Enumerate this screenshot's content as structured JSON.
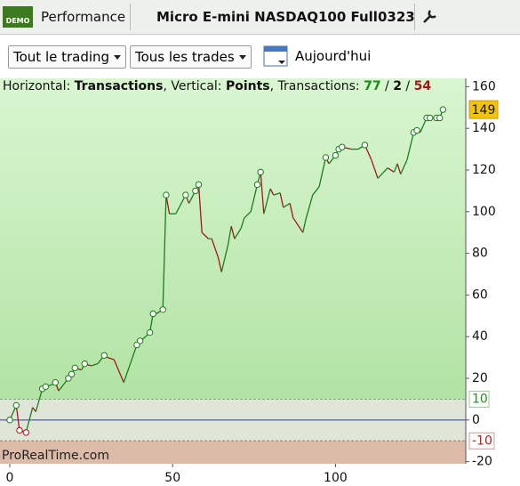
{
  "toolbar": {
    "badge": "DEMO",
    "view": "Performance",
    "instrument": "Micro E-mini NASDAQ100 Full0323"
  },
  "filters": {
    "scope": "Tout le trading",
    "trades": "Tous les trades",
    "period": "Aujourd'hui"
  },
  "chart_data": {
    "type": "line",
    "info": {
      "h_label": "Horizontal: ",
      "h_value": "Transactions",
      "v_label": ", Vertical: ",
      "v_value": "Points",
      "t_label": ", Transactions: ",
      "winners": "77",
      "slash1": " / ",
      "neutral": "2",
      "slash2": " / ",
      "losers": "54"
    },
    "watermark": "ProRealTime.com",
    "x": [
      0,
      2,
      3,
      5,
      7,
      8,
      10,
      11,
      13,
      14,
      15,
      17,
      18,
      19,
      20,
      22,
      23,
      25,
      27,
      29,
      30,
      32,
      35,
      37,
      39,
      40,
      41,
      43,
      44,
      45,
      47,
      48,
      49,
      51,
      54,
      55,
      57,
      58,
      59,
      61,
      62,
      64,
      65,
      67,
      68,
      69,
      71,
      72,
      74,
      76,
      77,
      78,
      80,
      81,
      83,
      84,
      86,
      87,
      90,
      91,
      93,
      95,
      97,
      98,
      100,
      101,
      102,
      105,
      107,
      109,
      111,
      113,
      116,
      118,
      119,
      120,
      122,
      124,
      125,
      126,
      128,
      129,
      131,
      132,
      133
    ],
    "values": [
      0,
      7,
      -5,
      -6,
      6,
      4,
      15,
      16,
      17,
      18,
      14,
      18,
      20,
      22,
      25,
      24,
      27,
      26,
      27,
      31,
      30,
      29,
      18,
      27,
      36,
      38,
      39,
      42,
      51,
      51,
      53,
      108,
      99,
      99,
      108,
      104,
      110,
      113,
      90,
      87,
      87,
      78,
      71,
      84,
      93,
      87,
      92,
      97,
      100,
      113,
      119,
      99,
      111,
      108,
      109,
      102,
      104,
      97,
      90,
      97,
      108,
      112,
      126,
      123,
      127,
      130,
      131,
      130,
      130,
      132,
      125,
      116,
      121,
      119,
      123,
      118,
      125,
      138,
      139,
      138,
      145,
      145,
      145,
      145,
      149
    ],
    "markers": {
      "x": [
        0,
        2,
        3,
        5,
        10,
        11,
        14,
        18,
        19,
        20,
        23,
        29,
        39,
        40,
        43,
        44,
        47,
        48,
        54,
        57,
        58,
        76,
        77,
        97,
        100,
        101,
        102,
        109,
        124,
        125,
        128,
        129,
        131,
        132,
        133
      ],
      "y": [
        0,
        7,
        -5,
        -6,
        15,
        16,
        18,
        20,
        22,
        25,
        27,
        31,
        36,
        38,
        42,
        51,
        53,
        108,
        108,
        110,
        113,
        113,
        119,
        126,
        127,
        130,
        131,
        132,
        138,
        139,
        145,
        145,
        145,
        145,
        149
      ]
    },
    "colors": {
      "up": "#1c7d1c",
      "down": "#a8141c",
      "zero": "#2b3fb8"
    },
    "bands": {
      "upper": 10,
      "lower": -10
    },
    "xlim": [
      -3,
      140
    ],
    "ylim": [
      -21,
      164
    ],
    "xticks": [
      0,
      50,
      100
    ],
    "yticks": [
      -20,
      0,
      20,
      40,
      60,
      80,
      100,
      120,
      140,
      160
    ]
  }
}
